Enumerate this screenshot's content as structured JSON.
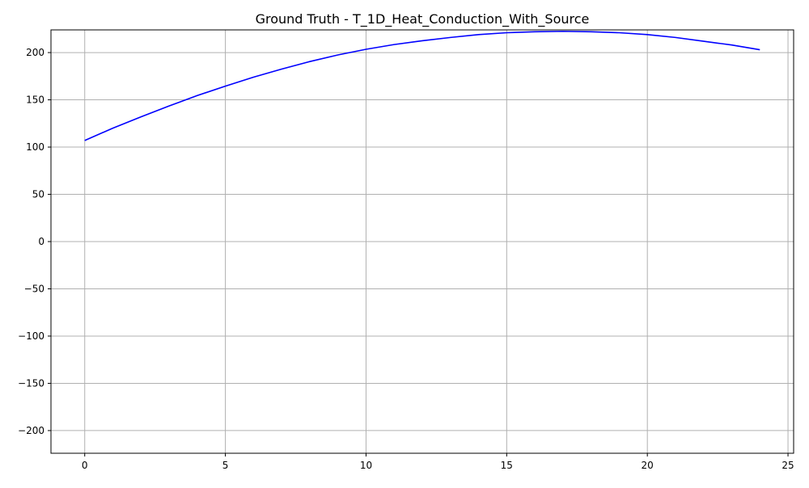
{
  "chart_data": {
    "type": "line",
    "title": "Ground Truth - T_1D_Heat_Conduction_With_Source",
    "xlabel": "",
    "ylabel": "",
    "xlim": [
      -1.2,
      25.2
    ],
    "ylim": [
      -224,
      224
    ],
    "x_ticks": [
      0,
      5,
      10,
      15,
      20,
      25
    ],
    "y_ticks": [
      -200,
      -150,
      -100,
      -50,
      0,
      50,
      100,
      150,
      200
    ],
    "x_tick_labels": [
      "0",
      "5",
      "10",
      "15",
      "20",
      "25"
    ],
    "y_tick_labels": [
      "−200",
      "−150",
      "−100",
      "−50",
      "0",
      "50",
      "100",
      "150",
      "200"
    ],
    "grid": true,
    "legend": "none",
    "series": [
      {
        "color": "#0000ff",
        "x": [
          0,
          1,
          2,
          3,
          4,
          5,
          6,
          7,
          8,
          9,
          10,
          11,
          12,
          13,
          14,
          15,
          16,
          17,
          18,
          19,
          20,
          21,
          22,
          23,
          24
        ],
        "values": [
          107,
          120,
          132,
          143.5,
          154.5,
          164.5,
          174,
          182.5,
          190.5,
          197.5,
          203.5,
          208.5,
          212.5,
          216,
          219,
          221,
          222,
          222.5,
          222,
          221,
          219,
          216,
          212,
          208,
          203
        ]
      }
    ]
  }
}
